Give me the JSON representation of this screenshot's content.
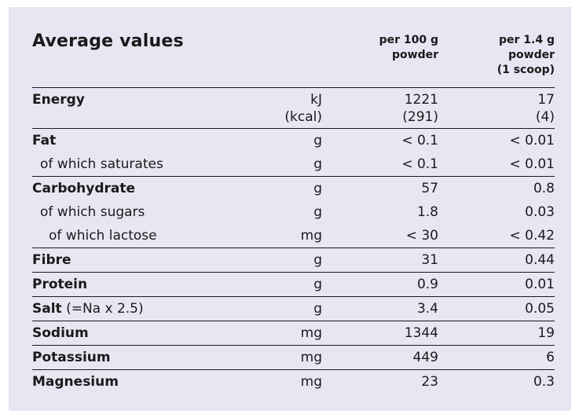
{
  "header": {
    "title": "Average values",
    "col_per100": "per 100 g\npowder",
    "col_scoop": "per 1.4 g\npowder\n(1 scoop)"
  },
  "rows": [
    {
      "name": "Energy",
      "unit": "kJ",
      "unit2": "(kcal)",
      "v100": "1221",
      "v100_2": "(291)",
      "vscoop": "17",
      "vscoop_2": "(4)"
    },
    {
      "name": "Fat",
      "unit": "g",
      "v100": "< 0.1",
      "vscoop": "< 0.01"
    },
    {
      "name": "of which saturates",
      "unit": "g",
      "v100": "< 0.1",
      "vscoop": "< 0.01"
    },
    {
      "name": "Carbohydrate",
      "unit": "g",
      "v100": "57",
      "vscoop": "0.8"
    },
    {
      "name": "of which sugars",
      "unit": "g",
      "v100": "1.8",
      "vscoop": "0.03"
    },
    {
      "name": "of which lactose",
      "unit": "mg",
      "v100": "< 30",
      "vscoop": "< 0.42"
    },
    {
      "name": "Fibre",
      "unit": "g",
      "v100": "31",
      "vscoop": "0.44"
    },
    {
      "name": "Protein",
      "unit": "g",
      "v100": "0.9",
      "vscoop": "0.01"
    },
    {
      "name": "Salt",
      "name_suffix": " (=Na x 2.5)",
      "unit": "g",
      "v100": "3.4",
      "vscoop": "0.05"
    },
    {
      "name": "Sodium",
      "unit": "mg",
      "v100": "1344",
      "vscoop": "19"
    },
    {
      "name": "Potassium",
      "unit": "mg",
      "v100": "449",
      "vscoop": "6"
    },
    {
      "name": "Magnesium",
      "unit": "mg",
      "v100": "23",
      "vscoop": "0.3"
    }
  ]
}
